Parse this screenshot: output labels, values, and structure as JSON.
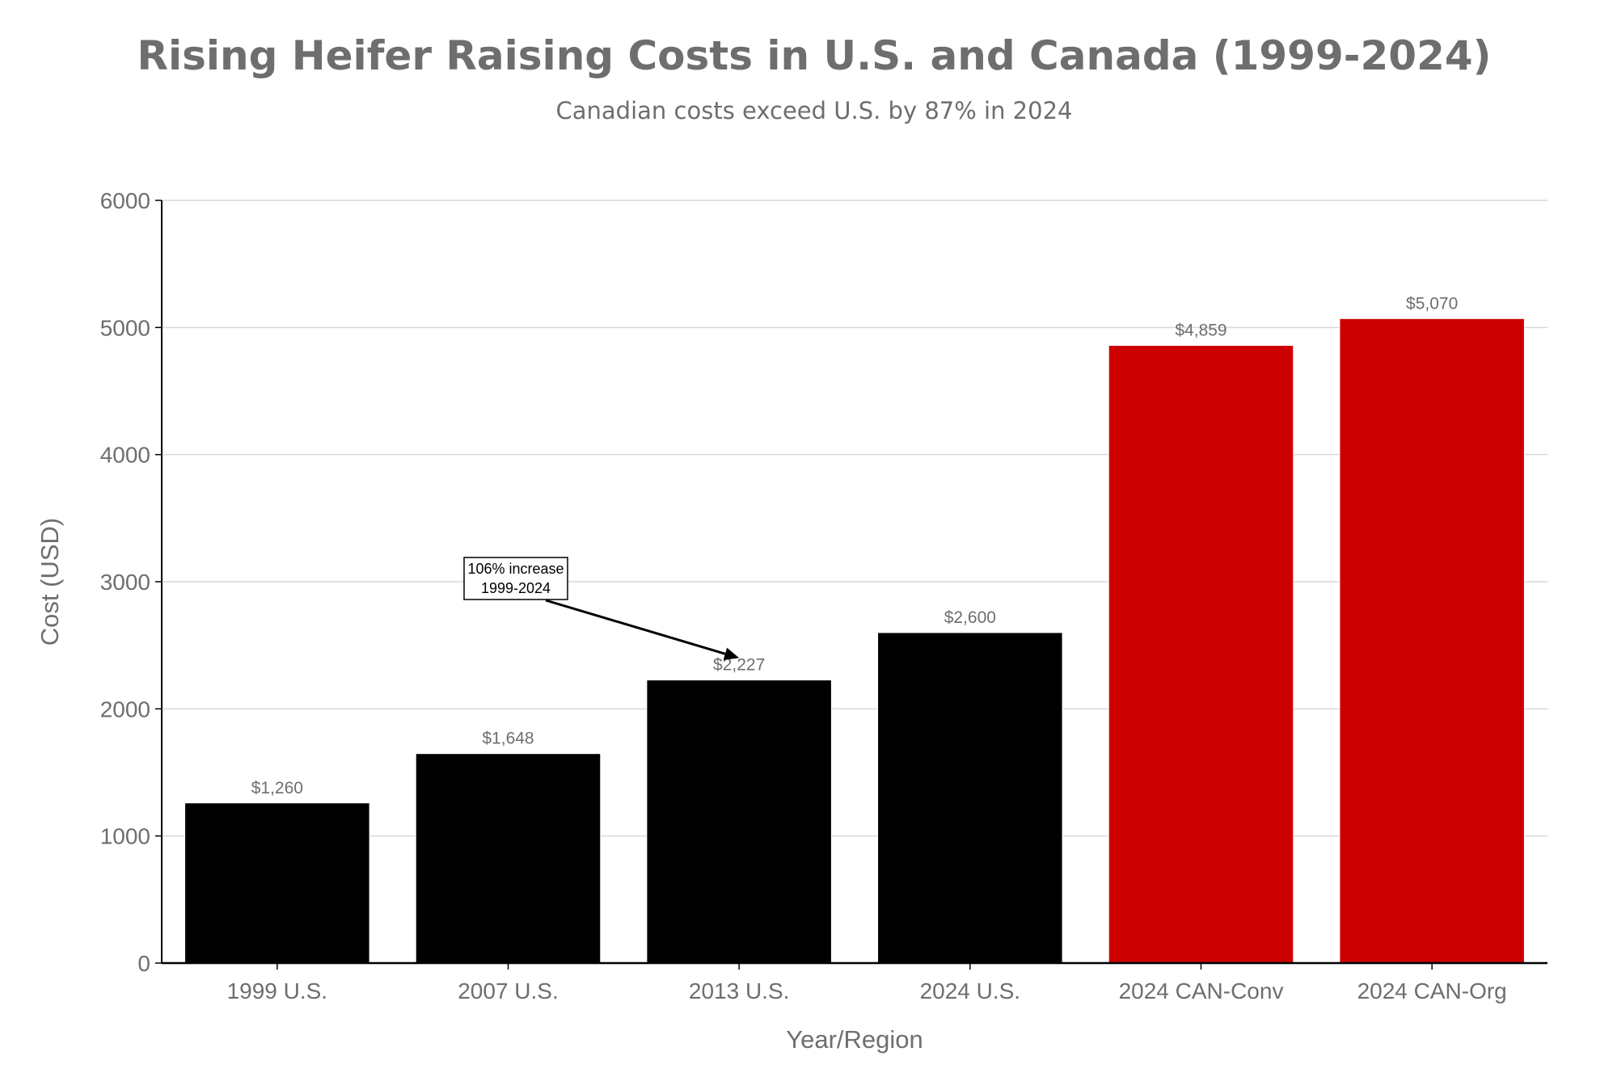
{
  "chart_data": {
    "type": "bar",
    "title": "Rising Heifer Raising Costs in U.S. and Canada (1999-2024)",
    "subtitle": "Canadian costs exceed U.S. by 87% in 2024",
    "xlabel": "Year/Region",
    "ylabel": "Cost (USD)",
    "categories": [
      "1999 U.S.",
      "2007 U.S.",
      "2013 U.S.",
      "2024 U.S.",
      "2024 CAN-Conv",
      "2024 CAN-Org"
    ],
    "values": [
      1260,
      1648,
      2227,
      2600,
      4859,
      5070
    ],
    "value_labels": [
      "$1,260",
      "$1,648",
      "$2,227",
      "$2,600",
      "$4,859",
      "$5,070"
    ],
    "bar_colors": [
      "#000000",
      "#000000",
      "#000000",
      "#000000",
      "#cc0000",
      "#cc0000"
    ],
    "ylim": [
      0,
      6000
    ],
    "yticks": [
      0,
      1000,
      2000,
      3000,
      4000,
      5000,
      6000
    ],
    "grid": true,
    "annotation": {
      "lines": [
        "106% increase",
        "1999-2024"
      ],
      "arrow_tip": {
        "x": 2.5,
        "y": 2400
      }
    }
  }
}
